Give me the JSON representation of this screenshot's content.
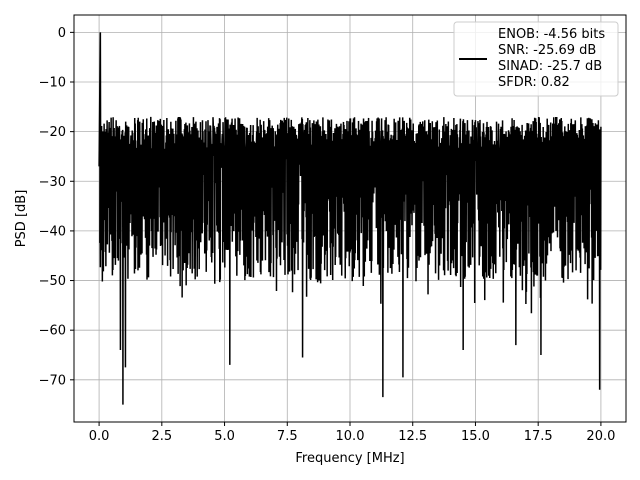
{
  "chart_data": {
    "type": "line",
    "title": "",
    "xlabel": "Frequency [MHz]",
    "ylabel": "PSD [dB]",
    "xlim": [
      -1.0,
      21.0
    ],
    "ylim": [
      -78.5,
      3.5
    ],
    "xticks": [
      0.0,
      2.5,
      5.0,
      7.5,
      10.0,
      12.5,
      15.0,
      17.5,
      20.0
    ],
    "xtick_labels": [
      "0.0",
      "2.5",
      "5.0",
      "7.5",
      "10.0",
      "12.5",
      "15.0",
      "17.5",
      "20.0"
    ],
    "yticks": [
      0,
      -10,
      -20,
      -30,
      -40,
      -50,
      -60,
      -70
    ],
    "ytick_labels": [
      "0",
      "−10",
      "−20",
      "−30",
      "−40",
      "−50",
      "−60",
      "−70"
    ],
    "grid": true,
    "legend_position": "upper-right",
    "legend_entries": [
      "ENOB: -4.56 bits",
      "SNR: -25.69 dB",
      "SINAD: -25.7 dB",
      "SFDR: 0.82"
    ],
    "series": [
      {
        "color": "#000000",
        "description": "noise floor spectrum, fluctuating dense band",
        "peak": {
          "x": 0.05,
          "y": 0
        },
        "x_range": [
          0.0,
          20.0
        ],
        "band_upper": -17,
        "band_lower": -50,
        "notable_dips": [
          {
            "x": 0.85,
            "y": -64
          },
          {
            "x": 0.95,
            "y": -75
          },
          {
            "x": 1.05,
            "y": -67.5
          },
          {
            "x": 5.2,
            "y": -67
          },
          {
            "x": 8.1,
            "y": -65.5
          },
          {
            "x": 11.3,
            "y": -73.5
          },
          {
            "x": 12.1,
            "y": -69.5
          },
          {
            "x": 14.5,
            "y": -64
          },
          {
            "x": 16.6,
            "y": -63
          },
          {
            "x": 17.6,
            "y": -65
          },
          {
            "x": 19.95,
            "y": -72
          }
        ]
      }
    ]
  }
}
